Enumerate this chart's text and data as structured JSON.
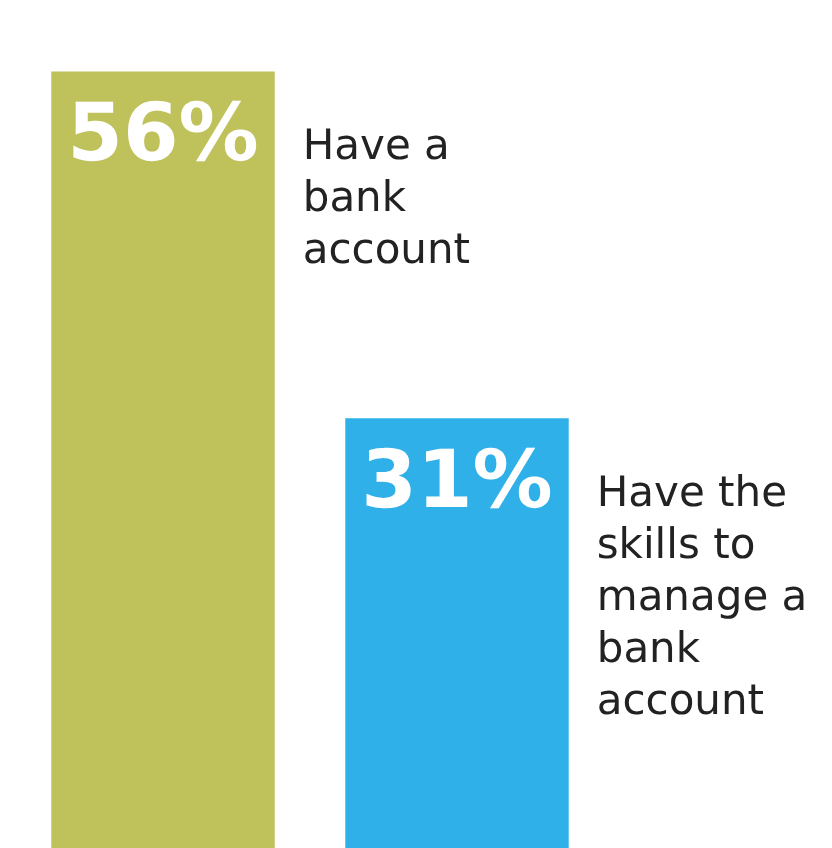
{
  "chart_data": {
    "type": "bar",
    "categories": [
      null,
      null
    ],
    "values": [
      56,
      31
    ],
    "colors": [
      "#bfc15a",
      "#2fb0e8"
    ],
    "value_labels": [
      "56%",
      "31%"
    ],
    "annotations": [
      "Have a bank account",
      "Have the skills to manage a bank account"
    ]
  }
}
